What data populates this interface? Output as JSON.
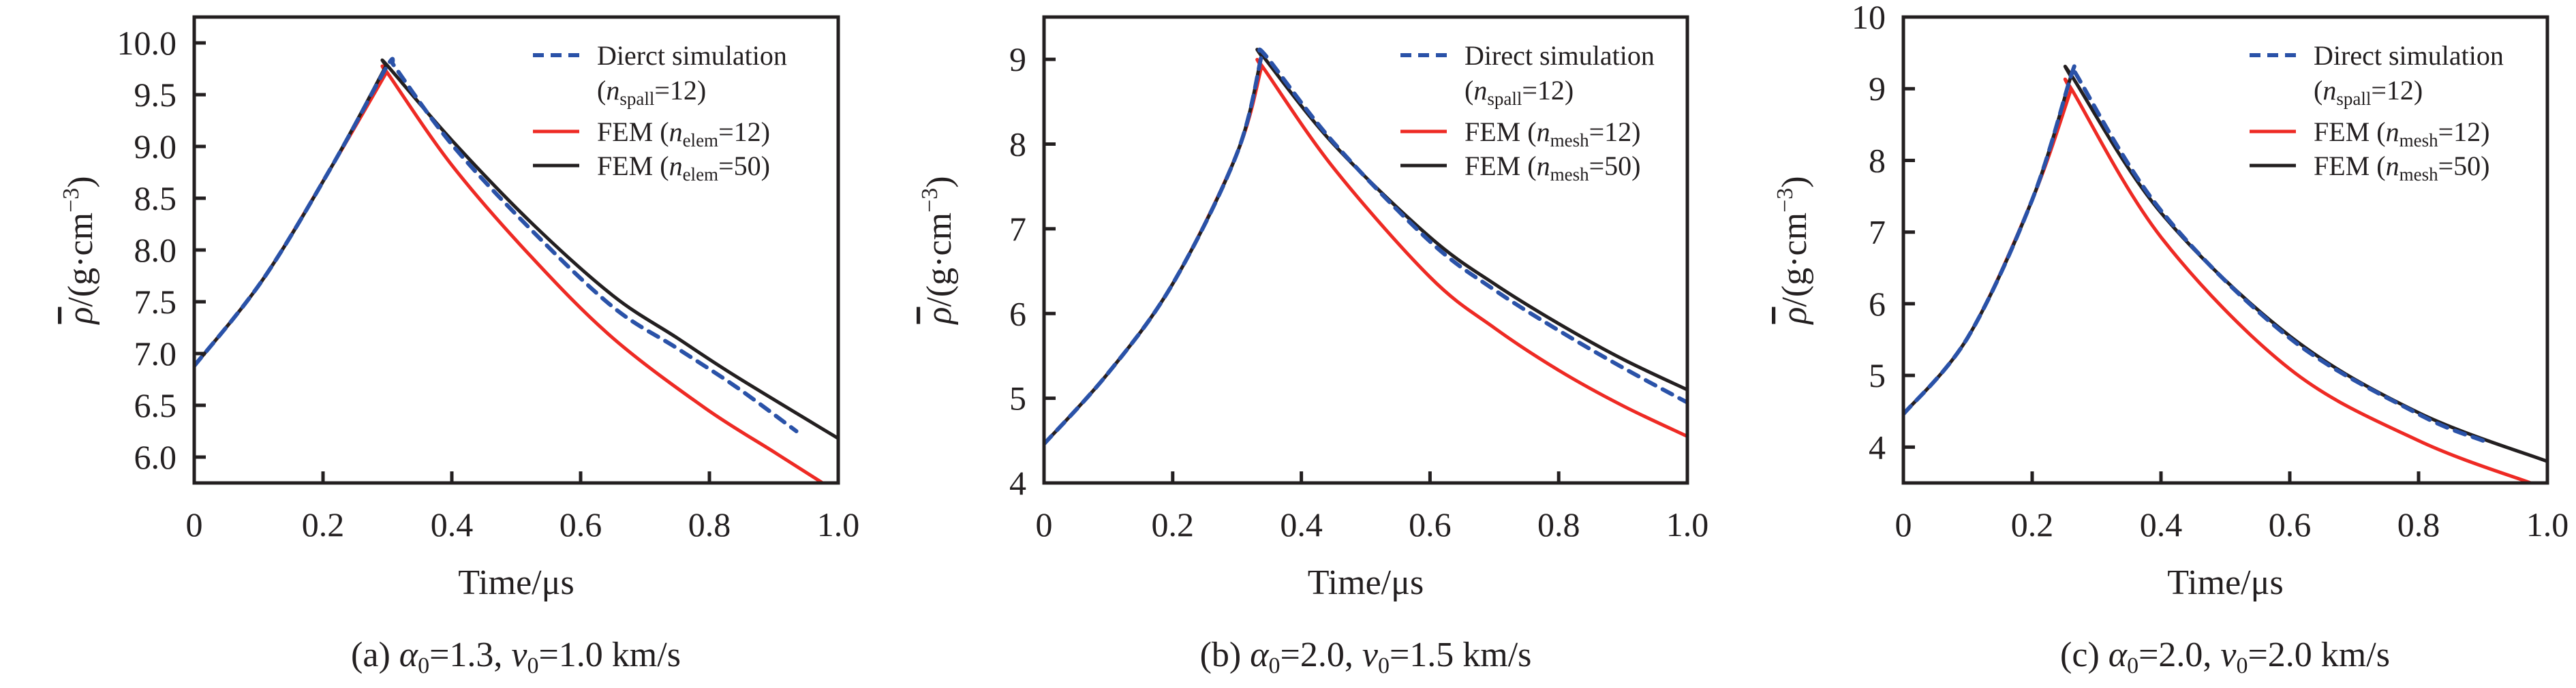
{
  "chart_data": [
    {
      "id": "a",
      "type": "line",
      "caption": {
        "label": "(a) ",
        "alpha_sym": "α",
        "alpha_sub": "0",
        "alpha_val": "=1.3, ",
        "v_sym": "v",
        "v_sub": "0",
        "v_val": "=1.0 km/s"
      },
      "xlabel": "Time/μs",
      "ylabel": {
        "sym": "ρ",
        "unit": "/(g·cm",
        "exp": "−3",
        "close": ")"
      },
      "xlim": [
        0,
        1.0
      ],
      "ylim": [
        5.75,
        10.25
      ],
      "xticks": [
        0,
        0.2,
        0.4,
        0.6,
        0.8,
        1.0
      ],
      "xtick_labels": [
        "0",
        "0.2",
        "0.4",
        "0.6",
        "0.8",
        "1.0"
      ],
      "yticks": [
        6.0,
        6.5,
        7.0,
        7.5,
        8.0,
        8.5,
        9.0,
        9.5,
        10.0
      ],
      "ytick_labels": [
        "6.0",
        "6.5",
        "7.0",
        "7.5",
        "8.0",
        "8.5",
        "9.0",
        "9.5",
        "10.0"
      ],
      "legend_position": "top-right",
      "series": [
        {
          "name": "Dierct simulation",
          "name_line2": {
            "open": "(",
            "n": "n",
            "sub": "spall",
            "rest": "=12)"
          },
          "style": "dashed",
          "color": "#2a52a8",
          "x": [
            0,
            0.106,
            0.212,
            0.298,
            0.308,
            0.4,
            0.524,
            0.65,
            0.75,
            0.841,
            0.935
          ],
          "y": [
            6.88,
            7.71,
            8.79,
            9.76,
            9.8,
            9.02,
            8.19,
            7.45,
            7.05,
            6.68,
            6.25
          ]
        },
        {
          "name": "FEM",
          "name_sub": {
            "open": " (",
            "n": "n",
            "sub": "elem",
            "rest": "=12)"
          },
          "style": "solid",
          "color": "#ee2a24",
          "x": [
            0,
            0.106,
            0.212,
            0.298,
            0.3,
            0.4,
            0.524,
            0.65,
            0.794,
            0.9,
            0.974
          ],
          "y": [
            6.88,
            7.71,
            8.79,
            9.71,
            9.71,
            8.82,
            7.93,
            7.15,
            6.47,
            6.05,
            5.757
          ]
        },
        {
          "name": "FEM",
          "name_sub": {
            "open": " (",
            "n": "n",
            "sub": "elem",
            "rest": "=50)"
          },
          "style": "solid",
          "color": "#231f20",
          "x": [
            0,
            0.106,
            0.212,
            0.298,
            0.3,
            0.4,
            0.524,
            0.65,
            0.75,
            0.841,
            1.0
          ],
          "y": [
            6.88,
            7.71,
            8.79,
            9.78,
            9.78,
            9.06,
            8.26,
            7.56,
            7.15,
            6.78,
            6.18
          ]
        }
      ]
    },
    {
      "id": "b",
      "type": "line",
      "caption": {
        "label": "(b) ",
        "alpha_sym": "α",
        "alpha_sub": "0",
        "alpha_val": "=2.0, ",
        "v_sym": "v",
        "v_sub": "0",
        "v_val": "=1.5 km/s"
      },
      "xlabel": "Time/μs",
      "ylabel": {
        "sym": "ρ",
        "unit": "/(g·cm",
        "exp": "−3",
        "close": ")"
      },
      "xlim": [
        0,
        1.0
      ],
      "ylim": [
        4.0,
        9.5
      ],
      "xticks": [
        0,
        0.2,
        0.4,
        0.6,
        0.8,
        1.0
      ],
      "xtick_labels": [
        "0",
        "0.2",
        "0.4",
        "0.6",
        "0.8",
        "1.0"
      ],
      "yticks": [
        4,
        5,
        6,
        7,
        8,
        9
      ],
      "ytick_labels": [
        "4",
        "5",
        "6",
        "7",
        "8",
        "9"
      ],
      "legend_position": "top-right",
      "series": [
        {
          "name": "Direct simulation",
          "name_line2": {
            "open": "(",
            "n": "n",
            "sub": "spall",
            "rest": "=12)"
          },
          "style": "dashed",
          "color": "#2a52a8",
          "x": [
            0,
            0.1,
            0.2,
            0.3,
            0.338,
            0.345,
            0.45,
            0.6,
            0.7,
            0.8,
            0.9,
            1.0
          ],
          "y": [
            4.46,
            5.3,
            6.35,
            7.89,
            9.04,
            9.04,
            8.02,
            6.85,
            6.28,
            5.8,
            5.36,
            4.95
          ]
        },
        {
          "name": "FEM",
          "name_sub": {
            "open": " (",
            "n": "n",
            "sub": "mesh",
            "rest": "=12)"
          },
          "style": "solid",
          "color": "#ee2a24",
          "x": [
            0,
            0.1,
            0.2,
            0.3,
            0.338,
            0.34,
            0.45,
            0.6,
            0.7,
            0.8,
            0.9,
            1.0
          ],
          "y": [
            4.46,
            5.3,
            6.35,
            7.89,
            8.91,
            8.91,
            7.72,
            6.43,
            5.83,
            5.33,
            4.91,
            4.55
          ]
        },
        {
          "name": "FEM",
          "name_sub": {
            "open": " (",
            "n": "n",
            "sub": "mesh",
            "rest": "=50)"
          },
          "style": "solid",
          "color": "#231f20",
          "x": [
            0,
            0.1,
            0.2,
            0.3,
            0.338,
            0.34,
            0.45,
            0.6,
            0.7,
            0.8,
            0.9,
            1.0
          ],
          "y": [
            4.46,
            5.3,
            6.35,
            7.89,
            9.04,
            9.04,
            8.0,
            6.9,
            6.35,
            5.88,
            5.46,
            5.1
          ]
        }
      ]
    },
    {
      "id": "c",
      "type": "line",
      "caption": {
        "label": "(c) ",
        "alpha_sym": "α",
        "alpha_sub": "0",
        "alpha_val": "=2.0, ",
        "v_sym": "v",
        "v_sub": "0",
        "v_val": "=2.0 km/s"
      },
      "xlabel": "Time/μs",
      "ylabel": {
        "sym": "ρ",
        "unit": "/(g·cm",
        "exp": "−3",
        "close": ")"
      },
      "xlim": [
        0,
        1.0
      ],
      "ylim": [
        3.5,
        10.0
      ],
      "xticks": [
        0,
        0.2,
        0.4,
        0.6,
        0.8,
        1.0
      ],
      "xtick_labels": [
        "0",
        "0.2",
        "0.4",
        "0.6",
        "0.8",
        "1.0"
      ],
      "yticks": [
        4,
        5,
        6,
        7,
        8,
        9,
        10
      ],
      "ytick_labels": [
        "4",
        "5",
        "6",
        "7",
        "8",
        "9",
        "10"
      ],
      "legend_position": "top-right",
      "series": [
        {
          "name": "Direct simulation",
          "name_line2": {
            "open": "(",
            "n": "n",
            "sub": "spall",
            "rest": "=12)"
          },
          "style": "dashed",
          "color": "#2a52a8",
          "x": [
            0,
            0.1,
            0.2,
            0.26,
            0.265,
            0.4,
            0.6,
            0.8,
            0.9
          ],
          "y": [
            4.46,
            5.53,
            7.45,
            9.17,
            9.25,
            7.3,
            5.52,
            4.46,
            4.09
          ]
        },
        {
          "name": "FEM",
          "name_sub": {
            "open": " (",
            "n": "n",
            "sub": "mesh",
            "rest": "=12)"
          },
          "style": "solid",
          "color": "#ee2a24",
          "x": [
            0,
            0.1,
            0.2,
            0.26,
            0.262,
            0.4,
            0.6,
            0.8,
            0.974
          ],
          "y": [
            4.46,
            5.53,
            7.45,
            8.98,
            8.98,
            6.93,
            5.09,
            4.09,
            3.5
          ]
        },
        {
          "name": "FEM",
          "name_sub": {
            "open": " (",
            "n": "n",
            "sub": "mesh",
            "rest": "=50)"
          },
          "style": "solid",
          "color": "#231f20",
          "x": [
            0,
            0.1,
            0.2,
            0.26,
            0.262,
            0.4,
            0.6,
            0.8,
            1.0
          ],
          "y": [
            4.46,
            5.53,
            7.45,
            9.17,
            9.17,
            7.27,
            5.55,
            4.48,
            3.8
          ]
        }
      ]
    }
  ]
}
